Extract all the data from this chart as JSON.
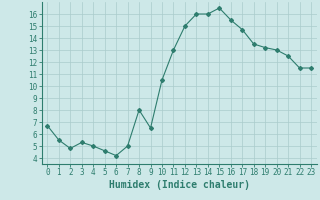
{
  "x": [
    0,
    1,
    2,
    3,
    4,
    5,
    6,
    7,
    8,
    9,
    10,
    11,
    12,
    13,
    14,
    15,
    16,
    17,
    18,
    19,
    20,
    21,
    22,
    23
  ],
  "y": [
    6.7,
    5.5,
    4.8,
    5.3,
    5.0,
    4.6,
    4.2,
    5.0,
    8.0,
    6.5,
    10.5,
    13.0,
    15.0,
    16.0,
    16.0,
    16.5,
    15.5,
    14.7,
    13.5,
    13.2,
    13.0,
    12.5,
    11.5,
    11.5
  ],
  "line_color": "#2e7d6e",
  "marker": "D",
  "marker_size": 2,
  "bg_color": "#cde8e8",
  "grid_color": "#aacccc",
  "xlabel": "Humidex (Indice chaleur)",
  "xlim": [
    -0.5,
    23.5
  ],
  "ylim": [
    3.5,
    17
  ],
  "yticks": [
    4,
    5,
    6,
    7,
    8,
    9,
    10,
    11,
    12,
    13,
    14,
    15,
    16
  ],
  "xticks": [
    0,
    1,
    2,
    3,
    4,
    5,
    6,
    7,
    8,
    9,
    10,
    11,
    12,
    13,
    14,
    15,
    16,
    17,
    18,
    19,
    20,
    21,
    22,
    23
  ],
  "tick_label_fontsize": 5.5,
  "xlabel_fontsize": 7.0
}
